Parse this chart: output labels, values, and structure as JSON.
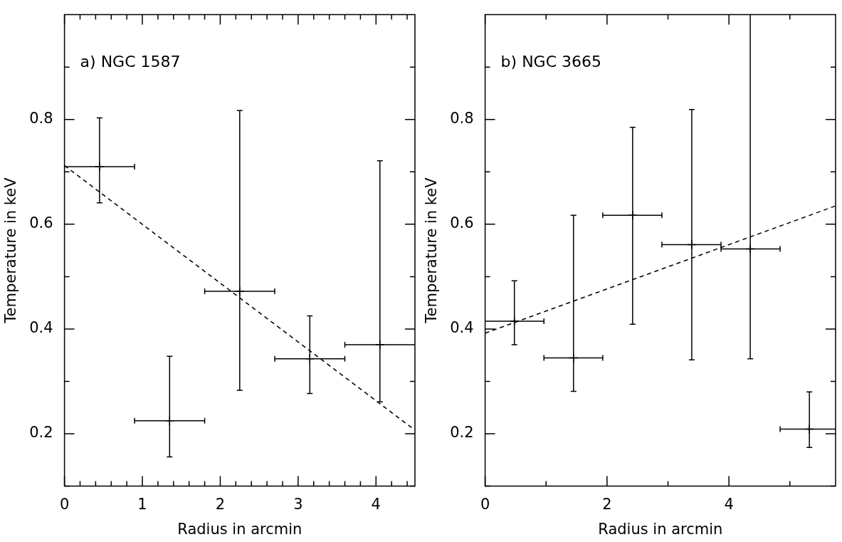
{
  "chart_data": [
    {
      "type": "scatter",
      "title": "a) NGC 1587",
      "xlabel": "Radius in arcmin",
      "ylabel": "Temperature in keV",
      "xlim": [
        0,
        4.5
      ],
      "ylim": [
        0.1,
        1.0
      ],
      "xticks": [
        0,
        {
          "value": 0.2,
          "label": null
        },
        {
          "value": 0.4,
          "label": null
        },
        {
          "value": 0.6,
          "label": null
        },
        {
          "value": 0.8,
          "label": null
        },
        1,
        {
          "value": 1.2,
          "label": null
        },
        {
          "value": 1.4,
          "label": null
        },
        {
          "value": 1.6,
          "label": null
        },
        {
          "value": 1.8,
          "label": null
        },
        2,
        {
          "value": 2.2,
          "label": null
        },
        {
          "value": 2.4,
          "label": null
        },
        {
          "value": 2.6,
          "label": null
        },
        {
          "value": 2.8,
          "label": null
        },
        3,
        {
          "value": 3.2,
          "label": null
        },
        {
          "value": 3.4,
          "label": null
        },
        {
          "value": 3.6,
          "label": null
        },
        {
          "value": 3.8,
          "label": null
        },
        4,
        {
          "value": 4.2,
          "label": null
        },
        {
          "value": 4.4,
          "label": null
        }
      ],
      "yticks": [
        {
          "value": 0.1,
          "label": null
        },
        0.2,
        {
          "value": 0.3,
          "label": null
        },
        0.4,
        {
          "value": 0.5,
          "label": null
        },
        0.6,
        {
          "value": 0.7,
          "label": null
        },
        0.8,
        {
          "value": 0.9,
          "label": null
        }
      ],
      "series": [
        {
          "color": "#000000",
          "marker": "cross",
          "x": [
            0.45,
            1.35,
            2.25,
            3.15,
            4.05
          ],
          "values": [
            0.71,
            0.225,
            0.472,
            0.343,
            0.37
          ],
          "errors": [
            [
              0.641,
              0.803
            ],
            [
              0.156,
              0.348
            ],
            [
              0.283,
              0.817
            ],
            [
              0.277,
              0.425
            ],
            [
              0.261,
              0.721
            ]
          ],
          "xerrors": [
            [
              0,
              0.9
            ],
            [
              0.9,
              1.8
            ],
            [
              1.8,
              2.7
            ],
            [
              2.7,
              3.6
            ],
            [
              3.6,
              4.5
            ]
          ]
        },
        {
          "type": "line",
          "line_style": "dashed",
          "color": "#000000",
          "x": [
            0,
            4.5
          ],
          "values": [
            0.712,
            0.207
          ]
        }
      ]
    },
    {
      "type": "scatter",
      "title": "b) NGC 3665",
      "xlabel": "Radius in arcmin",
      "ylabel": "Temperature in keV",
      "xlim": [
        0,
        5.75
      ],
      "ylim": [
        0.1,
        1.0
      ],
      "xticks": [
        0,
        {
          "value": 1,
          "label": null
        },
        2,
        {
          "value": 3,
          "label": null
        },
        4,
        {
          "value": 5,
          "label": null
        }
      ],
      "yticks": [
        {
          "value": 0.1,
          "label": null
        },
        0.2,
        {
          "value": 0.3,
          "label": null
        },
        0.4,
        {
          "value": 0.5,
          "label": null
        },
        0.6,
        {
          "value": 0.7,
          "label": null
        },
        0.8,
        {
          "value": 0.9,
          "label": null
        }
      ],
      "series": [
        {
          "color": "#000000",
          "marker": "cross",
          "x": [
            0.48,
            1.45,
            2.42,
            3.39,
            4.35,
            5.32
          ],
          "values": [
            0.415,
            0.345,
            0.617,
            0.561,
            0.553,
            0.209
          ],
          "errors": [
            [
              0.37,
              0.492
            ],
            [
              0.281,
              0.617
            ],
            [
              0.409,
              0.785
            ],
            [
              0.341,
              0.819
            ],
            [
              0.343,
              1.0
            ],
            [
              0.174,
              0.28
            ]
          ],
          "xerrors": [
            [
              0,
              0.965
            ],
            [
              0.965,
              1.93
            ],
            [
              1.93,
              2.9
            ],
            [
              2.9,
              3.87
            ],
            [
              3.87,
              4.84
            ],
            [
              4.84,
              5.75
            ]
          ]
        },
        {
          "type": "line",
          "line_style": "dashed",
          "color": "#000000",
          "x": [
            0,
            5.75
          ],
          "values": [
            0.392,
            0.635
          ]
        }
      ]
    }
  ]
}
